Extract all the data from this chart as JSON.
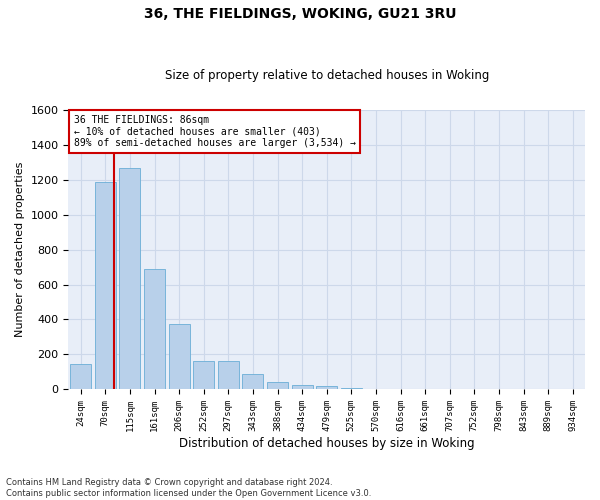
{
  "title1": "36, THE FIELDINGS, WOKING, GU21 3RU",
  "title2": "Size of property relative to detached houses in Woking",
  "xlabel": "Distribution of detached houses by size in Woking",
  "ylabel": "Number of detached properties",
  "footer": "Contains HM Land Registry data © Crown copyright and database right 2024.\nContains public sector information licensed under the Open Government Licence v3.0.",
  "categories": [
    "24sqm",
    "70sqm",
    "115sqm",
    "161sqm",
    "206sqm",
    "252sqm",
    "297sqm",
    "343sqm",
    "388sqm",
    "434sqm",
    "479sqm",
    "525sqm",
    "570sqm",
    "616sqm",
    "661sqm",
    "707sqm",
    "752sqm",
    "798sqm",
    "843sqm",
    "889sqm",
    "934sqm"
  ],
  "values": [
    148,
    1185,
    1265,
    690,
    375,
    165,
    165,
    90,
    42,
    28,
    22,
    10,
    0,
    0,
    0,
    0,
    0,
    0,
    0,
    0,
    0
  ],
  "bar_color": "#b8d0ea",
  "bar_edgecolor": "#6aaed6",
  "ylim": [
    0,
    1600
  ],
  "yticks": [
    0,
    200,
    400,
    600,
    800,
    1000,
    1200,
    1400,
    1600
  ],
  "annotation_line1": "36 THE FIELDINGS: 86sqm",
  "annotation_line2": "← 10% of detached houses are smaller (403)",
  "annotation_line3": "89% of semi-detached houses are larger (3,534) →",
  "annotation_box_color": "#ffffff",
  "annotation_box_edgecolor": "#cc0000",
  "grid_color": "#cdd8ea",
  "background_color": "#e8eef8",
  "red_line_color": "#cc0000",
  "property_sqm": 86
}
